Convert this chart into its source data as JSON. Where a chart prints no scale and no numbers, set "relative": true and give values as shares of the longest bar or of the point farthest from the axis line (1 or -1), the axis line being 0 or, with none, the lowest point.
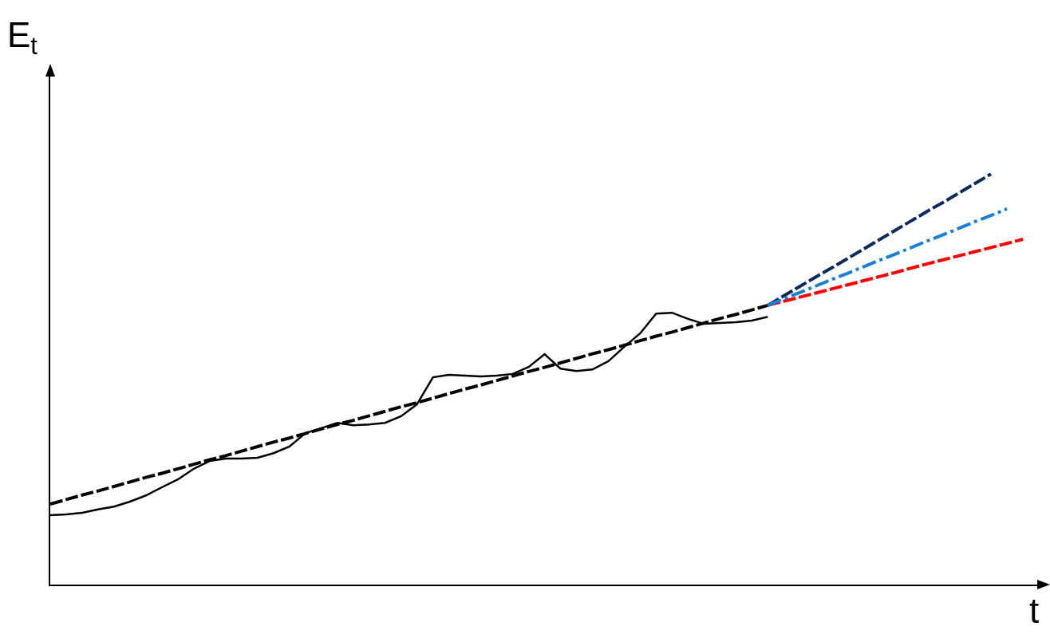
{
  "chart_data": {
    "type": "line",
    "relative": true,
    "xlabel": "t",
    "ylabel": "E$_{t}$",
    "marker": "none",
    "categories": [
      null,
      null,
      null,
      null,
      null,
      null,
      null,
      null,
      null,
      null,
      null,
      null,
      null,
      null,
      null,
      null,
      null,
      null,
      null,
      null,
      null,
      null,
      null,
      null,
      null,
      null,
      null,
      null,
      null,
      null,
      null,
      null,
      null,
      null,
      null,
      null,
      null,
      null,
      null,
      null,
      null,
      null,
      null,
      null,
      null,
      null,
      null,
      null,
      null,
      null,
      null,
      null,
      null,
      null,
      null,
      null,
      null,
      null,
      null,
      null,
      null,
      null
    ],
    "series": [
      {
        "color": "#000000",
        "line_style": "solid",
        "values": [
          0.169,
          0.171,
          0.175,
          0.183,
          0.19,
          0.202,
          0.217,
          0.237,
          0.256,
          0.282,
          0.301,
          0.307,
          0.307,
          0.309,
          0.32,
          0.336,
          0.369,
          0.381,
          0.394,
          0.388,
          0.39,
          0.394,
          0.41,
          0.439,
          0.505,
          0.511,
          0.509,
          0.507,
          0.509,
          0.513,
          0.53,
          0.561,
          0.526,
          0.52,
          0.524,
          0.544,
          0.579,
          0.612,
          0.66,
          0.662,
          0.647,
          0.635,
          0.637,
          0.639,
          0.643,
          0.652,
          null,
          null,
          null,
          null,
          null,
          null,
          null,
          null,
          null,
          null,
          null,
          null,
          null,
          null,
          null,
          null
        ]
      },
      {
        "color": "#000000",
        "line_style": "dashed",
        "values": [
          0.196,
          0.207,
          0.218,
          0.228,
          0.239,
          0.25,
          0.261,
          0.271,
          0.282,
          0.293,
          0.304,
          0.314,
          0.325,
          0.336,
          0.347,
          0.357,
          0.368,
          0.379,
          0.39,
          0.4,
          0.411,
          0.422,
          0.433,
          0.443,
          0.454,
          0.465,
          0.476,
          0.486,
          0.497,
          0.508,
          0.519,
          0.529,
          0.54,
          0.551,
          0.562,
          0.572,
          0.583,
          0.594,
          0.605,
          0.615,
          0.626,
          0.637,
          0.648,
          0.658,
          0.669,
          0.68,
          null,
          null,
          null,
          null,
          null,
          null,
          null,
          null,
          null,
          null,
          null,
          null,
          null,
          null,
          null,
          null
        ]
      },
      {
        "color": "#0d2a5c",
        "line_style": "dashed",
        "values": [
          null,
          null,
          null,
          null,
          null,
          null,
          null,
          null,
          null,
          null,
          null,
          null,
          null,
          null,
          null,
          null,
          null,
          null,
          null,
          null,
          null,
          null,
          null,
          null,
          null,
          null,
          null,
          null,
          null,
          null,
          null,
          null,
          null,
          null,
          null,
          null,
          null,
          null,
          null,
          null,
          null,
          null,
          null,
          null,
          null,
          0.68,
          0.703,
          0.726,
          0.749,
          0.771,
          0.794,
          0.817,
          0.84,
          0.863,
          0.886,
          0.909,
          0.931,
          0.954,
          0.977,
          1.0,
          null,
          null
        ]
      },
      {
        "color": "#ff0000",
        "line_style": "dashed",
        "values": [
          null,
          null,
          null,
          null,
          null,
          null,
          null,
          null,
          null,
          null,
          null,
          null,
          null,
          null,
          null,
          null,
          null,
          null,
          null,
          null,
          null,
          null,
          null,
          null,
          null,
          null,
          null,
          null,
          null,
          null,
          null,
          null,
          null,
          null,
          null,
          null,
          null,
          null,
          null,
          null,
          null,
          null,
          null,
          null,
          null,
          0.68,
          0.69,
          0.7,
          0.71,
          0.72,
          0.73,
          0.74,
          0.75,
          0.76,
          0.771,
          0.781,
          0.791,
          0.801,
          0.811,
          0.821,
          0.831,
          0.841
        ]
      },
      {
        "color": "#1a7fd9",
        "line_style": "dashdot",
        "values": [
          null,
          null,
          null,
          null,
          null,
          null,
          null,
          null,
          null,
          null,
          null,
          null,
          null,
          null,
          null,
          null,
          null,
          null,
          null,
          null,
          null,
          null,
          null,
          null,
          null,
          null,
          null,
          null,
          null,
          null,
          null,
          null,
          null,
          null,
          null,
          null,
          null,
          null,
          null,
          null,
          null,
          null,
          null,
          null,
          null,
          0.68,
          0.696,
          0.711,
          0.727,
          0.743,
          0.758,
          0.774,
          0.79,
          0.805,
          0.821,
          0.837,
          0.852,
          0.868,
          0.884,
          0.899,
          0.915,
          null
        ]
      }
    ]
  }
}
